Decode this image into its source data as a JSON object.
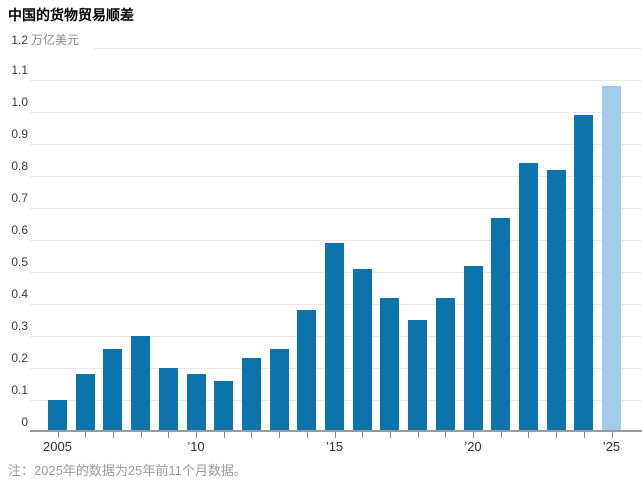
{
  "title": "中国的货物贸易顺差",
  "y_axis": {
    "top_tick": "1.2",
    "unit": "万亿美元",
    "tick_labels": [
      "0",
      "0.1",
      "0.2",
      "0.3",
      "0.4",
      "0.5",
      "0.6",
      "0.7",
      "0.8",
      "0.9",
      "1.0",
      "1.1",
      "1.2"
    ]
  },
  "note": "注：2025年的数据为25年前11个月数据。",
  "colors": {
    "bar": "#0d74ab",
    "bar_highlight": "#a2cbe9",
    "gridline": "#e7e7e7",
    "axis": "#9b9b9b",
    "tick": "#8a8a8a",
    "label": "#3a3a3a",
    "muted": "#9a9a9a"
  },
  "chart_data": {
    "type": "bar",
    "title": "中国的货物贸易顺差",
    "ylabel": "万亿美元",
    "categories": [
      2005,
      2006,
      2007,
      2008,
      2009,
      2010,
      2011,
      2012,
      2013,
      2014,
      2015,
      2016,
      2017,
      2018,
      2019,
      2020,
      2021,
      2022,
      2023,
      2024,
      2025
    ],
    "values": [
      0.1,
      0.18,
      0.26,
      0.3,
      0.2,
      0.18,
      0.16,
      0.23,
      0.26,
      0.38,
      0.59,
      0.51,
      0.42,
      0.35,
      0.42,
      0.52,
      0.67,
      0.84,
      0.82,
      0.99,
      1.08
    ],
    "highlight_last": true,
    "highlight_category": 2025,
    "ylim": [
      0,
      1.2
    ],
    "ytick_step": 0.1,
    "grid": true,
    "legend": "none",
    "xticks": [
      {
        "year": 2005,
        "label": "2005"
      },
      {
        "year": 2010,
        "label": "’10"
      },
      {
        "year": 2015,
        "label": "’15"
      },
      {
        "year": 2020,
        "label": "’20"
      },
      {
        "year": 2025,
        "label": "’25"
      }
    ],
    "note": "注：2025年的数据为25年前11个月数据。"
  }
}
